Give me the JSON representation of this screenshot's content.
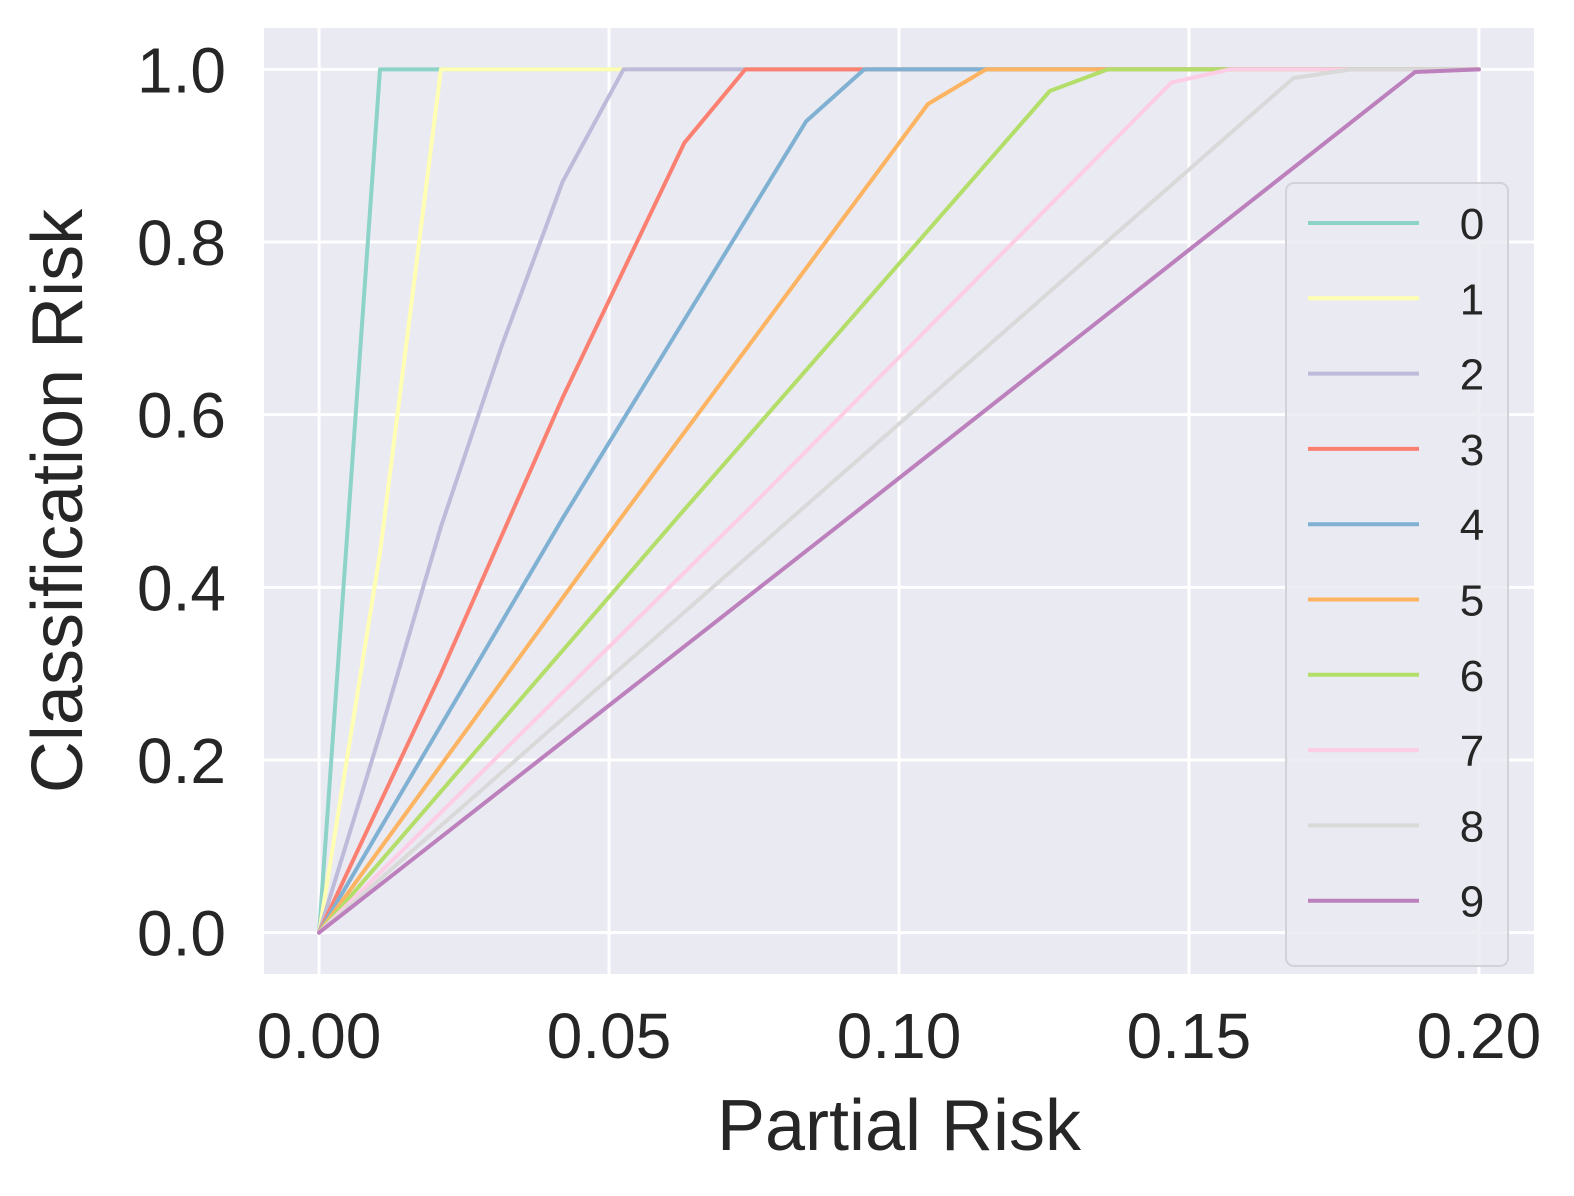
{
  "chart_data": {
    "type": "line",
    "title": "",
    "xlabel": "Partial Risk",
    "ylabel": "Classification Risk",
    "xlim": [
      -0.0095,
      0.2095
    ],
    "ylim": [
      -0.048,
      1.048
    ],
    "xticks": [
      0.0,
      0.05,
      0.1,
      0.15,
      0.2
    ],
    "xtick_labels": [
      "0.00",
      "0.05",
      "0.10",
      "0.15",
      "0.20"
    ],
    "yticks": [
      0.0,
      0.2,
      0.4,
      0.6,
      0.8,
      1.0
    ],
    "ytick_labels": [
      "0.0",
      "0.2",
      "0.4",
      "0.6",
      "0.8",
      "1.0"
    ],
    "grid": true,
    "legend_position": "right",
    "background": "#EAEAF2",
    "series": [
      {
        "name": "0",
        "color": "#8DD3C7",
        "x": [
          0,
          0.0105,
          0.2
        ],
        "y": [
          0,
          1.0,
          1.0
        ]
      },
      {
        "name": "1",
        "color": "#FFFFB3",
        "x": [
          0,
          0.0105,
          0.021,
          0.2
        ],
        "y": [
          0,
          0.44,
          1.0,
          1.0
        ]
      },
      {
        "name": "2",
        "color": "#BEBADA",
        "x": [
          0,
          0.0105,
          0.021,
          0.0315,
          0.042,
          0.0525,
          0.2
        ],
        "y": [
          0,
          0.23,
          0.47,
          0.68,
          0.87,
          1.0,
          1.0
        ]
      },
      {
        "name": "3",
        "color": "#FB8072",
        "x": [
          0,
          0.021,
          0.042,
          0.063,
          0.0735,
          0.2
        ],
        "y": [
          0,
          0.3,
          0.62,
          0.915,
          1.0,
          1.0
        ]
      },
      {
        "name": "4",
        "color": "#80B1D3",
        "x": [
          0,
          0.042,
          0.084,
          0.094,
          0.2
        ],
        "y": [
          0,
          0.48,
          0.94,
          1.0,
          1.0
        ]
      },
      {
        "name": "5",
        "color": "#FDB462",
        "x": [
          0,
          0.052,
          0.105,
          0.115,
          0.2
        ],
        "y": [
          0,
          0.48,
          0.96,
          1.0,
          1.0
        ]
      },
      {
        "name": "6",
        "color": "#B3DE69",
        "x": [
          0,
          0.063,
          0.126,
          0.136,
          0.2
        ],
        "y": [
          0,
          0.49,
          0.975,
          1.0,
          1.0
        ]
      },
      {
        "name": "7",
        "color": "#FCCDE5",
        "x": [
          0,
          0.074,
          0.147,
          0.157,
          0.2
        ],
        "y": [
          0,
          0.49,
          0.985,
          1.0,
          1.0
        ]
      },
      {
        "name": "8",
        "color": "#D9D9D9",
        "x": [
          0,
          0.084,
          0.168,
          0.178,
          0.2
        ],
        "y": [
          0,
          0.495,
          0.99,
          1.0,
          1.0
        ]
      },
      {
        "name": "9",
        "color": "#BC80BD",
        "x": [
          0,
          0.095,
          0.189,
          0.2
        ],
        "y": [
          0,
          0.5,
          0.997,
          1.0
        ]
      }
    ]
  }
}
